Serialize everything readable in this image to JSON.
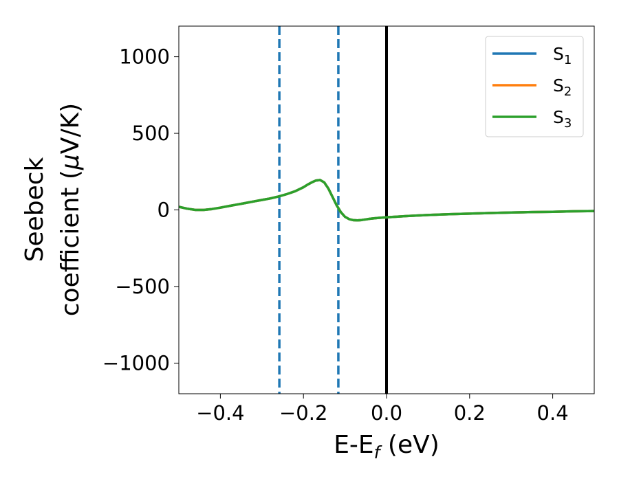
{
  "chart_data": {
    "type": "line",
    "xlabel": {
      "base": "E-E",
      "sub": "f",
      "tail": " (eV)"
    },
    "ylabel": {
      "line1": "Seebeck",
      "line2": "coefficient  (",
      "mu": "μ",
      "line2_tail": "V/K)"
    },
    "xlim": [
      -0.5,
      0.5
    ],
    "ylim": [
      -1200,
      1200
    ],
    "xticks": [
      -0.4,
      -0.2,
      0.0,
      0.2,
      0.4
    ],
    "xtick_labels": [
      "−0.4",
      "−0.2",
      "0.0",
      "0.2",
      "0.4"
    ],
    "yticks": [
      -1000,
      -500,
      0,
      500,
      1000
    ],
    "ytick_labels": [
      "−1000",
      "−500",
      "0",
      "500",
      "1000"
    ],
    "grid": false,
    "legend_position": "top-right",
    "series": [
      {
        "name": {
          "base": "S",
          "sub": "1"
        },
        "color": "#1f77b4",
        "x": [
          -0.5,
          -0.48,
          -0.46,
          -0.44,
          -0.42,
          -0.4,
          -0.38,
          -0.36,
          -0.34,
          -0.32,
          -0.3,
          -0.28,
          -0.26,
          -0.24,
          -0.22,
          -0.2,
          -0.19,
          -0.18,
          -0.17,
          -0.16,
          -0.15,
          -0.14,
          -0.13,
          -0.12,
          -0.11,
          -0.1,
          -0.09,
          -0.08,
          -0.07,
          -0.06,
          -0.05,
          -0.04,
          -0.02,
          0.0,
          0.05,
          0.1,
          0.15,
          0.2,
          0.25,
          0.3,
          0.35,
          0.4,
          0.45,
          0.5
        ],
        "y": [
          20,
          8,
          0,
          0,
          6,
          15,
          25,
          35,
          45,
          55,
          65,
          75,
          88,
          103,
          122,
          148,
          165,
          180,
          192,
          195,
          180,
          140,
          85,
          30,
          -15,
          -45,
          -60,
          -67,
          -68,
          -66,
          -62,
          -58,
          -52,
          -48,
          -40,
          -33,
          -28,
          -24,
          -20,
          -17,
          -14,
          -12,
          -9,
          -7
        ]
      },
      {
        "name": {
          "base": "S",
          "sub": "2"
        },
        "color": "#ff7f0e",
        "x": [
          -0.5,
          -0.48,
          -0.46,
          -0.44,
          -0.42,
          -0.4,
          -0.38,
          -0.36,
          -0.34,
          -0.32,
          -0.3,
          -0.28,
          -0.26,
          -0.24,
          -0.22,
          -0.2,
          -0.19,
          -0.18,
          -0.17,
          -0.16,
          -0.15,
          -0.14,
          -0.13,
          -0.12,
          -0.11,
          -0.1,
          -0.09,
          -0.08,
          -0.07,
          -0.06,
          -0.05,
          -0.04,
          -0.02,
          0.0,
          0.05,
          0.1,
          0.15,
          0.2,
          0.25,
          0.3,
          0.35,
          0.4,
          0.45,
          0.5
        ],
        "y": [
          20,
          8,
          0,
          0,
          6,
          15,
          25,
          35,
          45,
          55,
          65,
          75,
          88,
          103,
          122,
          148,
          165,
          180,
          192,
          195,
          180,
          140,
          85,
          30,
          -15,
          -45,
          -60,
          -67,
          -68,
          -66,
          -62,
          -58,
          -52,
          -48,
          -40,
          -33,
          -28,
          -24,
          -20,
          -17,
          -14,
          -12,
          -9,
          -7
        ]
      },
      {
        "name": {
          "base": "S",
          "sub": "3"
        },
        "color": "#2ca02c",
        "x": [
          -0.5,
          -0.48,
          -0.46,
          -0.44,
          -0.42,
          -0.4,
          -0.38,
          -0.36,
          -0.34,
          -0.32,
          -0.3,
          -0.28,
          -0.26,
          -0.24,
          -0.22,
          -0.2,
          -0.19,
          -0.18,
          -0.17,
          -0.16,
          -0.15,
          -0.14,
          -0.13,
          -0.12,
          -0.11,
          -0.1,
          -0.09,
          -0.08,
          -0.07,
          -0.06,
          -0.05,
          -0.04,
          -0.02,
          0.0,
          0.05,
          0.1,
          0.15,
          0.2,
          0.25,
          0.3,
          0.35,
          0.4,
          0.45,
          0.5
        ],
        "y": [
          20,
          8,
          0,
          0,
          6,
          15,
          25,
          35,
          45,
          55,
          65,
          75,
          88,
          103,
          122,
          148,
          165,
          180,
          192,
          195,
          180,
          140,
          85,
          30,
          -15,
          -45,
          -60,
          -67,
          -68,
          -66,
          -62,
          -58,
          -52,
          -48,
          -40,
          -33,
          -28,
          -24,
          -20,
          -17,
          -14,
          -12,
          -9,
          -7
        ]
      }
    ],
    "vlines": [
      {
        "x": -0.258,
        "color": "#1f77b4",
        "style": "dashed"
      },
      {
        "x": -0.116,
        "color": "#1f77b4",
        "style": "dashed"
      },
      {
        "x": 0.0,
        "color": "#000000",
        "style": "solid"
      }
    ]
  }
}
